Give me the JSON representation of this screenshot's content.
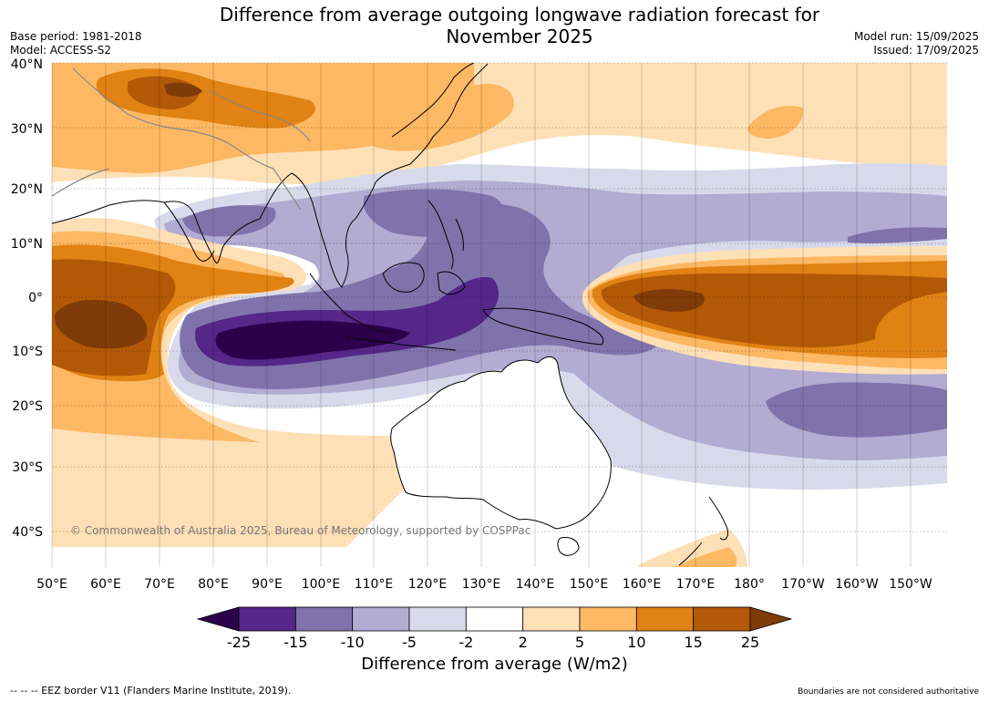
{
  "header": {
    "title_line1": "Difference from average outgoing longwave radiation forecast for",
    "title_line2": "November 2025",
    "base_period": "Base period: 1981-2018",
    "model": "Model: ACCESS-S2",
    "model_run": "Model run: 15/09/2025",
    "issued": "Issued: 17/09/2025"
  },
  "map": {
    "lat_labels": [
      "40°N",
      "30°N",
      "20°N",
      "10°N",
      "0°",
      "10°S",
      "20°S",
      "30°S",
      "40°S"
    ],
    "lon_labels": [
      "50°E",
      "60°E",
      "70°E",
      "80°E",
      "90°E",
      "100°E",
      "110°E",
      "120°E",
      "130°E",
      "140°E",
      "150°E",
      "160°E",
      "170°E",
      "180°",
      "170°W",
      "160°W",
      "150°W"
    ],
    "copyright": "© Commonwealth of Australia 2025, Bureau of Meteorology, supported by COSPPac"
  },
  "colorbar": {
    "tick_labels": [
      "-25",
      "-15",
      "-10",
      "-5",
      "-2",
      "2",
      "5",
      "10",
      "15",
      "25"
    ],
    "colors": [
      "#2d004b",
      "#542788",
      "#8073ac",
      "#b2abd2",
      "#d8daeb",
      "#ffffff",
      "#fee0b6",
      "#fdb863",
      "#e08214",
      "#b35806",
      "#7f3b08"
    ],
    "label": "Difference from average (W/m2)"
  },
  "footer": {
    "eez_note": "--  --  -- EEZ border V11 (Flanders Marine Institute, 2019).",
    "disclaimer": "Boundaries are not considered authoritative"
  }
}
